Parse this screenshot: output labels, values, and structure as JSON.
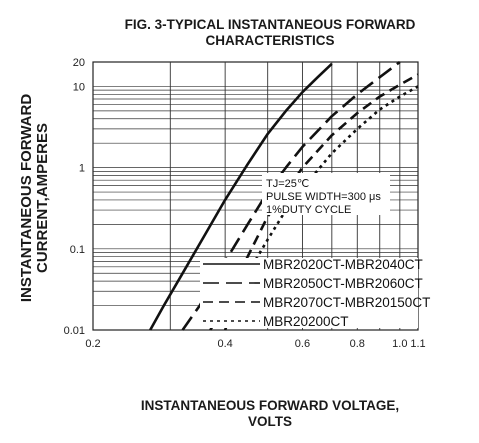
{
  "chart_data": {
    "type": "line",
    "title": "FIG. 3-TYPICAL INSTANTANEOUS FORWARD\nCHARACTERISTICS",
    "xlabel": "INSTANTANEOUS FORWARD VOLTAGE,\nVOLTS",
    "ylabel": "INSTANTANEOUS FORWARD\nCURRENT,AMPERES",
    "x_scale": "log",
    "y_scale": "log",
    "xlim": [
      0.2,
      1.1
    ],
    "ylim": [
      0.01,
      20
    ],
    "x_ticks": [
      0.2,
      0.4,
      0.6,
      0.8,
      1.0,
      1.1
    ],
    "x_tick_labels": [
      "0.2",
      "0.4",
      "0.6",
      "0.8",
      "1.0",
      "1.1"
    ],
    "y_ticks": [
      0.01,
      0.1,
      1,
      10,
      20
    ],
    "y_tick_labels": [
      "0.01",
      "0.1",
      "1",
      "10",
      "20"
    ],
    "grid": true,
    "annotation": [
      "TJ=25℃",
      "PULSE WIDTH=300 μs",
      "1%DUTY CYCLE"
    ],
    "legend_position": "bottom-right",
    "series": [
      {
        "name": "MBR2020CT-MBR2040CT",
        "dash": "solid",
        "x": [
          0.27,
          0.29,
          0.32,
          0.36,
          0.4,
          0.45,
          0.5,
          0.55,
          0.6,
          0.65,
          0.7
        ],
        "y": [
          0.01,
          0.02,
          0.05,
          0.15,
          0.4,
          1.1,
          2.6,
          5.0,
          8.5,
          13,
          19
        ]
      },
      {
        "name": "MBR2050CT-MBR2060CT",
        "dash": "long-dash",
        "x": [
          0.32,
          0.35,
          0.4,
          0.45,
          0.5,
          0.55,
          0.6,
          0.7,
          0.8,
          0.9,
          1.0
        ],
        "y": [
          0.01,
          0.02,
          0.07,
          0.2,
          0.5,
          1.0,
          1.8,
          4.3,
          8.0,
          13,
          20
        ]
      },
      {
        "name": "MBR2070CT-MBR20150CT",
        "dash": "dash",
        "x": [
          0.37,
          0.4,
          0.45,
          0.5,
          0.55,
          0.6,
          0.7,
          0.8,
          0.9,
          1.0,
          1.1
        ],
        "y": [
          0.01,
          0.02,
          0.08,
          0.25,
          0.5,
          1.0,
          2.5,
          4.7,
          7.5,
          10.5,
          14
        ]
      },
      {
        "name": "MBR20200CT",
        "dash": "dot",
        "x": [
          0.4,
          0.42,
          0.45,
          0.5,
          0.55,
          0.6,
          0.7,
          0.8,
          0.9,
          1.0,
          1.1
        ],
        "y": [
          0.01,
          0.02,
          0.05,
          0.13,
          0.3,
          0.55,
          1.5,
          3.0,
          5.2,
          7.5,
          10
        ]
      }
    ]
  }
}
